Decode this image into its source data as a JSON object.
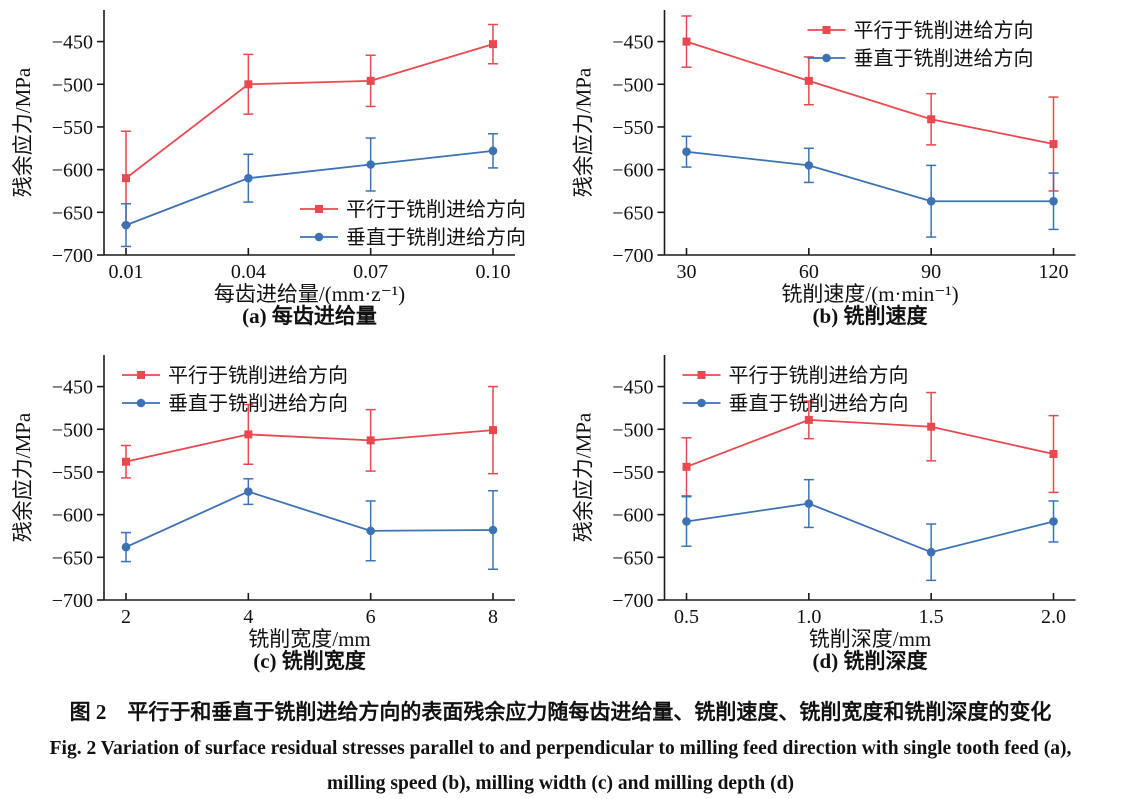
{
  "figure": {
    "caption_cn": "图 2　平行于和垂直于铣削进给方向的表面残余应力随每齿进给量、铣削速度、铣削宽度和铣削深度的变化",
    "caption_en_1": "Fig. 2  Variation of surface residual stresses parallel to and perpendicular to milling feed direction with single tooth feed (a),",
    "caption_en_2": "milling speed (b), milling width (c) and milling depth (d)"
  },
  "colors": {
    "parallel": "#e8494f",
    "perpendicular": "#3c72b4",
    "axis": "#1a1a1a"
  },
  "chart_data": [
    {
      "id": "a",
      "type": "line",
      "title": "(a) 每齿进给量",
      "xlabel": "每齿进给量/(mm·z⁻¹)",
      "ylabel": "残余应力/MPa",
      "categories": [
        "0.01",
        "0.04",
        "0.07",
        "0.10"
      ],
      "y_ticks": [
        -450,
        -500,
        -550,
        -600,
        -650,
        -700
      ],
      "ylim": [
        -700,
        -413
      ],
      "grid": false,
      "legend_position": "bottom-right",
      "series": [
        {
          "name": "平行于铣削进给方向",
          "color_key": "parallel",
          "marker": "square",
          "values": [
            -610,
            -500,
            -496,
            -453
          ],
          "errors": [
            55,
            35,
            30,
            23
          ]
        },
        {
          "name": "垂直于铣削进给方向",
          "color_key": "perpendicular",
          "marker": "circle",
          "values": [
            -665,
            -610,
            -594,
            -578
          ],
          "errors": [
            25,
            28,
            31,
            20
          ]
        }
      ]
    },
    {
      "id": "b",
      "type": "line",
      "title": "(b) 铣削速度",
      "xlabel": "铣削速度/(m·min⁻¹)",
      "ylabel": "残余应力/MPa",
      "categories": [
        "30",
        "60",
        "90",
        "120"
      ],
      "y_ticks": [
        -450,
        -500,
        -550,
        -600,
        -650,
        -700
      ],
      "ylim": [
        -700,
        -413
      ],
      "grid": false,
      "legend_position": "top-right",
      "series": [
        {
          "name": "平行于铣削进给方向",
          "color_key": "parallel",
          "marker": "square",
          "values": [
            -450,
            -496,
            -541,
            -570
          ],
          "errors": [
            30,
            28,
            30,
            55
          ]
        },
        {
          "name": "垂直于铣削进给方向",
          "color_key": "perpendicular",
          "marker": "circle",
          "values": [
            -579,
            -595,
            -637,
            -637
          ],
          "errors": [
            18,
            20,
            42,
            33
          ]
        }
      ]
    },
    {
      "id": "c",
      "type": "line",
      "title": "(c) 铣削宽度",
      "xlabel": "铣削宽度/mm",
      "ylabel": "残余应力/MPa",
      "categories": [
        "2",
        "4",
        "6",
        "8"
      ],
      "y_ticks": [
        -450,
        -500,
        -550,
        -600,
        -650,
        -700
      ],
      "ylim": [
        -700,
        -413
      ],
      "grid": false,
      "legend_position": "top-left",
      "series": [
        {
          "name": "平行于铣削进给方向",
          "color_key": "parallel",
          "marker": "square",
          "values": [
            -538,
            -506,
            -513,
            -501
          ],
          "errors": [
            19,
            35,
            36,
            51
          ]
        },
        {
          "name": "垂直于铣削进给方向",
          "color_key": "perpendicular",
          "marker": "circle",
          "values": [
            -638,
            -573,
            -619,
            -618
          ],
          "errors": [
            17,
            15,
            35,
            46
          ]
        }
      ]
    },
    {
      "id": "d",
      "type": "line",
      "title": "(d) 铣削深度",
      "xlabel": "铣削深度/mm",
      "ylabel": "残余应力/MPa",
      "categories": [
        "0.5",
        "1.0",
        "1.5",
        "2.0"
      ],
      "y_ticks": [
        -450,
        -500,
        -550,
        -600,
        -650,
        -700
      ],
      "ylim": [
        -700,
        -413
      ],
      "grid": false,
      "legend_position": "top-left",
      "series": [
        {
          "name": "平行于铣削进给方向",
          "color_key": "parallel",
          "marker": "square",
          "values": [
            -544,
            -489,
            -497,
            -529
          ],
          "errors": [
            34,
            22,
            40,
            45
          ]
        },
        {
          "name": "垂直于铣削进给方向",
          "color_key": "perpendicular",
          "marker": "circle",
          "values": [
            -608,
            -587,
            -644,
            -608
          ],
          "errors": [
            29,
            28,
            33,
            24
          ]
        }
      ]
    }
  ]
}
